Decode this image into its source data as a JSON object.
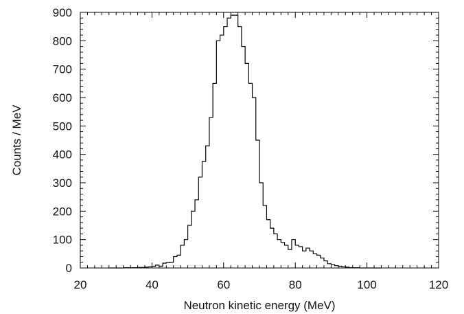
{
  "chart_data": {
    "type": "histogram",
    "xlabel": "Neutron kinetic energy (MeV)",
    "ylabel": "Counts / MeV",
    "xlim": [
      20,
      120
    ],
    "ylim": [
      0,
      900
    ],
    "xticks": [
      20,
      40,
      60,
      80,
      100,
      120
    ],
    "yticks": [
      0,
      100,
      200,
      300,
      400,
      500,
      600,
      700,
      800,
      900
    ],
    "grid": false,
    "bin_width": 1,
    "bins": {
      "x_start": [
        28,
        29,
        30,
        31,
        32,
        33,
        34,
        35,
        36,
        37,
        38,
        39,
        40,
        41,
        42,
        43,
        44,
        45,
        46,
        47,
        48,
        49,
        50,
        51,
        52,
        53,
        54,
        55,
        56,
        57,
        58,
        59,
        60,
        61,
        62,
        63,
        64,
        65,
        66,
        67,
        68,
        69,
        70,
        71,
        72,
        73,
        74,
        75,
        76,
        77,
        78,
        79,
        80,
        81,
        82,
        83,
        84,
        85,
        86,
        87,
        88,
        89,
        90,
        91,
        92,
        93,
        94,
        95,
        96,
        97,
        98,
        99,
        100,
        101,
        102,
        103
      ],
      "counts": [
        0,
        0,
        0,
        0,
        1,
        1,
        1,
        1,
        2,
        2,
        3,
        4,
        6,
        10,
        6,
        17,
        19,
        20,
        40,
        45,
        80,
        100,
        150,
        200,
        240,
        320,
        375,
        430,
        530,
        650,
        800,
        820,
        850,
        880,
        890,
        890,
        850,
        780,
        720,
        650,
        600,
        450,
        300,
        220,
        170,
        140,
        120,
        100,
        90,
        80,
        65,
        100,
        80,
        75,
        60,
        70,
        60,
        50,
        45,
        35,
        25,
        15,
        12,
        8,
        6,
        4,
        3,
        1,
        1,
        1,
        0,
        0,
        0,
        0,
        0,
        0
      ]
    }
  }
}
